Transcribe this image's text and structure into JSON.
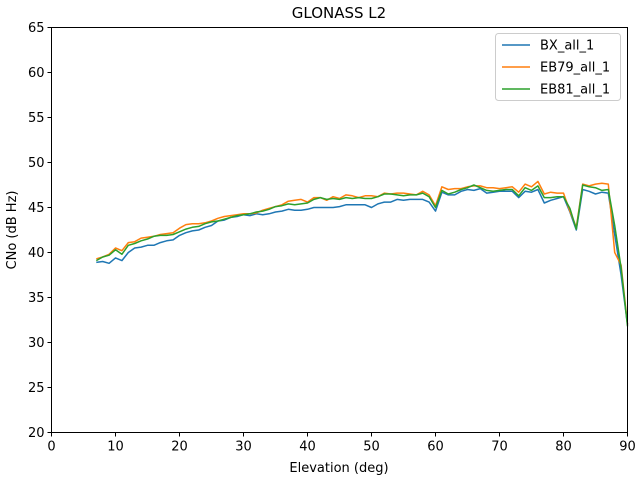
{
  "chart_data": {
    "type": "line",
    "title": "GLONASS L2",
    "xlabel": "Elevation (deg)",
    "ylabel": "CNo (dB Hz)",
    "xlim": [
      0,
      90
    ],
    "ylim": [
      20,
      65
    ],
    "xticks": [
      0,
      10,
      20,
      30,
      40,
      50,
      60,
      70,
      80,
      90
    ],
    "yticks": [
      20,
      25,
      30,
      35,
      40,
      45,
      50,
      55,
      60,
      65
    ],
    "grid": false,
    "legend_position": "top-right",
    "x": [
      7,
      8,
      9,
      10,
      11,
      12,
      13,
      14,
      15,
      16,
      17,
      18,
      19,
      20,
      21,
      22,
      23,
      24,
      25,
      26,
      27,
      28,
      29,
      30,
      31,
      32,
      33,
      34,
      35,
      36,
      37,
      38,
      39,
      40,
      41,
      42,
      43,
      44,
      45,
      46,
      47,
      48,
      49,
      50,
      51,
      52,
      53,
      54,
      55,
      56,
      57,
      58,
      59,
      60,
      61,
      62,
      63,
      64,
      65,
      66,
      67,
      68,
      69,
      70,
      71,
      72,
      73,
      74,
      75,
      76,
      77,
      78,
      79,
      80,
      81,
      82,
      83,
      84,
      85,
      86,
      87,
      88,
      89,
      90
    ],
    "series": [
      {
        "name": "BX_all_1",
        "color": "#1f77b4",
        "values": [
          38.9,
          39.0,
          38.8,
          39.4,
          39.1,
          40.0,
          40.5,
          40.6,
          40.8,
          40.8,
          41.1,
          41.3,
          41.4,
          41.9,
          42.2,
          42.4,
          42.5,
          42.8,
          43.0,
          43.5,
          43.6,
          43.9,
          44.0,
          44.2,
          44.1,
          44.3,
          44.2,
          44.3,
          44.5,
          44.6,
          44.8,
          44.7,
          44.7,
          44.8,
          45.0,
          45.0,
          45.0,
          45.0,
          45.1,
          45.3,
          45.3,
          45.3,
          45.3,
          45.0,
          45.4,
          45.6,
          45.6,
          45.9,
          45.8,
          45.9,
          45.9,
          45.9,
          45.6,
          44.6,
          46.7,
          46.4,
          46.4,
          46.8,
          47.0,
          46.9,
          47.1,
          46.6,
          46.7,
          46.8,
          46.8,
          46.8,
          46.1,
          46.8,
          46.7,
          47.0,
          45.5,
          45.8,
          46.0,
          46.2,
          44.5,
          42.5,
          47.0,
          46.8,
          46.5,
          46.7,
          46.6,
          42.0,
          37.5,
          32.0
        ]
      },
      {
        "name": "EB79_all_1",
        "color": "#ff7f0e",
        "values": [
          39.3,
          39.5,
          39.8,
          40.5,
          40.2,
          41.1,
          41.2,
          41.6,
          41.7,
          41.8,
          42.0,
          42.1,
          42.2,
          42.7,
          43.1,
          43.2,
          43.2,
          43.3,
          43.5,
          43.8,
          44.0,
          44.1,
          44.2,
          44.3,
          44.3,
          44.4,
          44.7,
          44.9,
          45.1,
          45.3,
          45.7,
          45.8,
          45.9,
          45.6,
          46.1,
          46.1,
          45.8,
          46.2,
          46.0,
          46.4,
          46.3,
          46.1,
          46.3,
          46.3,
          46.2,
          46.6,
          46.5,
          46.6,
          46.6,
          46.5,
          46.4,
          46.8,
          46.4,
          45.2,
          47.3,
          47.0,
          47.1,
          47.1,
          47.3,
          47.4,
          47.4,
          47.2,
          47.2,
          47.1,
          47.2,
          47.3,
          46.7,
          47.6,
          47.3,
          47.9,
          46.5,
          46.7,
          46.6,
          46.6,
          44.6,
          42.8,
          47.6,
          47.4,
          47.6,
          47.7,
          47.6,
          40.0,
          38.6,
          32.0
        ]
      },
      {
        "name": "EB81_all_1",
        "color": "#2ca02c",
        "values": [
          39.1,
          39.5,
          39.7,
          40.3,
          39.8,
          40.8,
          41.0,
          41.3,
          41.5,
          41.8,
          41.9,
          41.9,
          42.0,
          42.3,
          42.6,
          42.8,
          42.9,
          43.2,
          43.4,
          43.5,
          43.7,
          43.9,
          44.1,
          44.2,
          44.3,
          44.5,
          44.6,
          44.8,
          45.1,
          45.2,
          45.4,
          45.3,
          45.4,
          45.5,
          45.9,
          46.1,
          45.9,
          46.0,
          45.9,
          46.1,
          46.0,
          46.1,
          46.0,
          46.0,
          46.2,
          46.5,
          46.5,
          46.4,
          46.3,
          46.4,
          46.4,
          46.6,
          46.2,
          45.0,
          46.9,
          46.5,
          46.7,
          47.0,
          47.2,
          47.5,
          47.2,
          46.9,
          46.8,
          46.9,
          47.0,
          47.0,
          46.3,
          47.2,
          46.9,
          47.4,
          46.1,
          46.1,
          46.2,
          46.2,
          44.9,
          42.6,
          47.5,
          47.3,
          47.2,
          46.9,
          47.0,
          43.0,
          38.3,
          31.8
        ]
      }
    ]
  }
}
